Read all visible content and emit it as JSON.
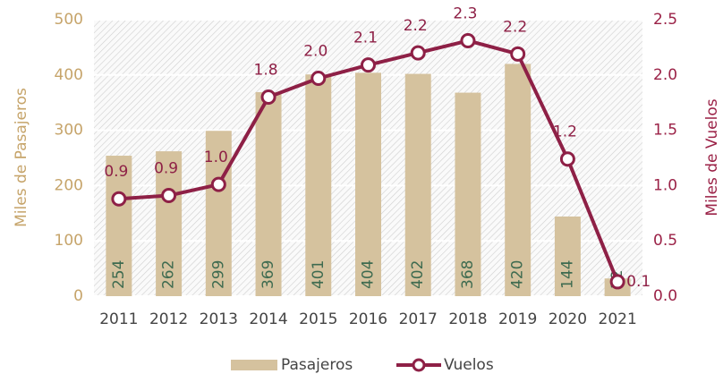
{
  "chart_data": {
    "type": "bar",
    "categories": [
      "2011",
      "2012",
      "2013",
      "2014",
      "2015",
      "2016",
      "2017",
      "2018",
      "2019",
      "2020",
      "2021"
    ],
    "series": [
      {
        "name": "Pasajeros",
        "color": "#d5c29e",
        "values": [
          254,
          262,
          299,
          369,
          401,
          404,
          402,
          368,
          420,
          144,
          32
        ]
      },
      {
        "name": "Vuelos",
        "type": "line",
        "axis": "y2",
        "color": "#8e2046",
        "values": [
          0.88,
          0.91,
          1.01,
          1.8,
          1.97,
          2.09,
          2.2,
          2.31,
          2.19,
          1.24,
          0.13
        ],
        "value_labels": [
          "0.9",
          "0.9",
          "1.0",
          "1.8",
          "2.0",
          "2.1",
          "2.2",
          "2.3",
          "2.2",
          "1.2",
          "0.1"
        ]
      }
    ],
    "ylabel": "Miles de Pasajeros",
    "y2label": "Miles de Vuelos",
    "ylim": [
      0,
      500
    ],
    "yticks": [
      0,
      100,
      200,
      300,
      400,
      500
    ],
    "y2lim": [
      0,
      2.5
    ],
    "y2ticks": [
      {
        "value": 0,
        "label": "0.0"
      },
      0.5,
      {
        "value": 1,
        "label": "1.0"
      },
      1.5,
      {
        "value": 2,
        "label": "2.0"
      },
      2.5
    ],
    "grid": true,
    "legend": "bottom"
  }
}
